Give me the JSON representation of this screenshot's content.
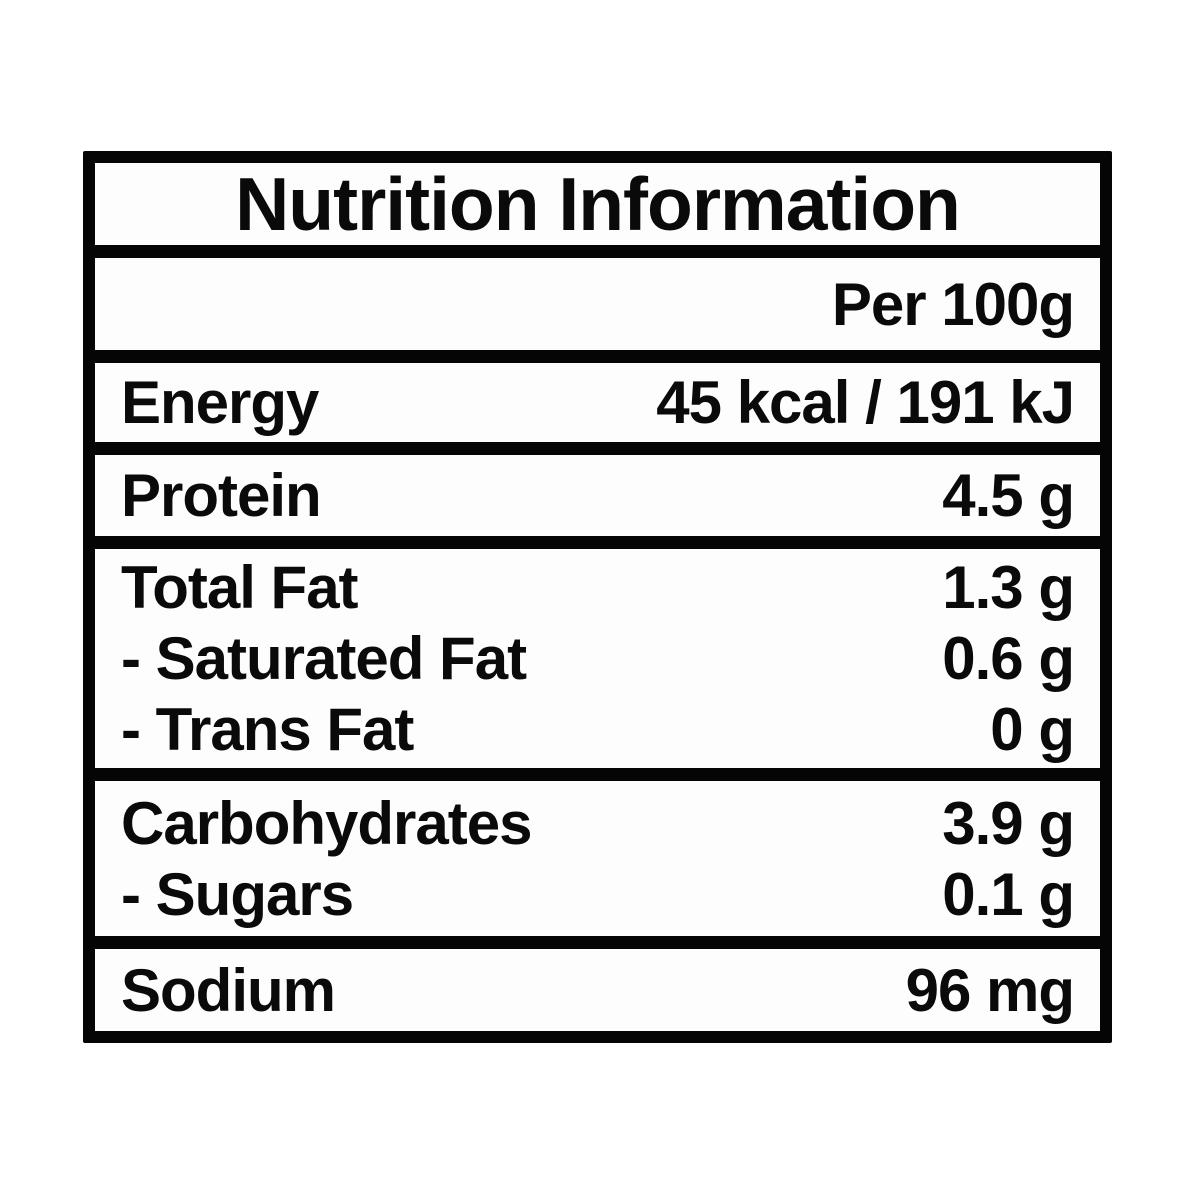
{
  "label": {
    "title": "Nutrition Information",
    "column_header": "Per 100g",
    "rows": [
      {
        "id": "energy",
        "items": [
          {
            "name": "Energy",
            "value": "45 kcal / 191 kJ"
          }
        ]
      },
      {
        "id": "protein",
        "items": [
          {
            "name": "Protein",
            "value": "4.5 g"
          }
        ]
      },
      {
        "id": "fat",
        "items": [
          {
            "name": "Total Fat",
            "value": "1.3 g"
          },
          {
            "name": "- Saturated Fat",
            "value": "0.6 g"
          },
          {
            "name": "- Trans Fat",
            "value": "0 g"
          }
        ]
      },
      {
        "id": "carbohydrates",
        "items": [
          {
            "name": "Carbohydrates",
            "value": "3.9 g"
          },
          {
            "name": "- Sugars",
            "value": "0.1 g"
          }
        ]
      },
      {
        "id": "sodium",
        "items": [
          {
            "name": "Sodium",
            "value": "96 mg"
          }
        ]
      }
    ],
    "colors": {
      "border": "#050505",
      "row_background": "#fdfdfd",
      "text": "#0a0a0a",
      "page_background": "#ffffff"
    }
  }
}
